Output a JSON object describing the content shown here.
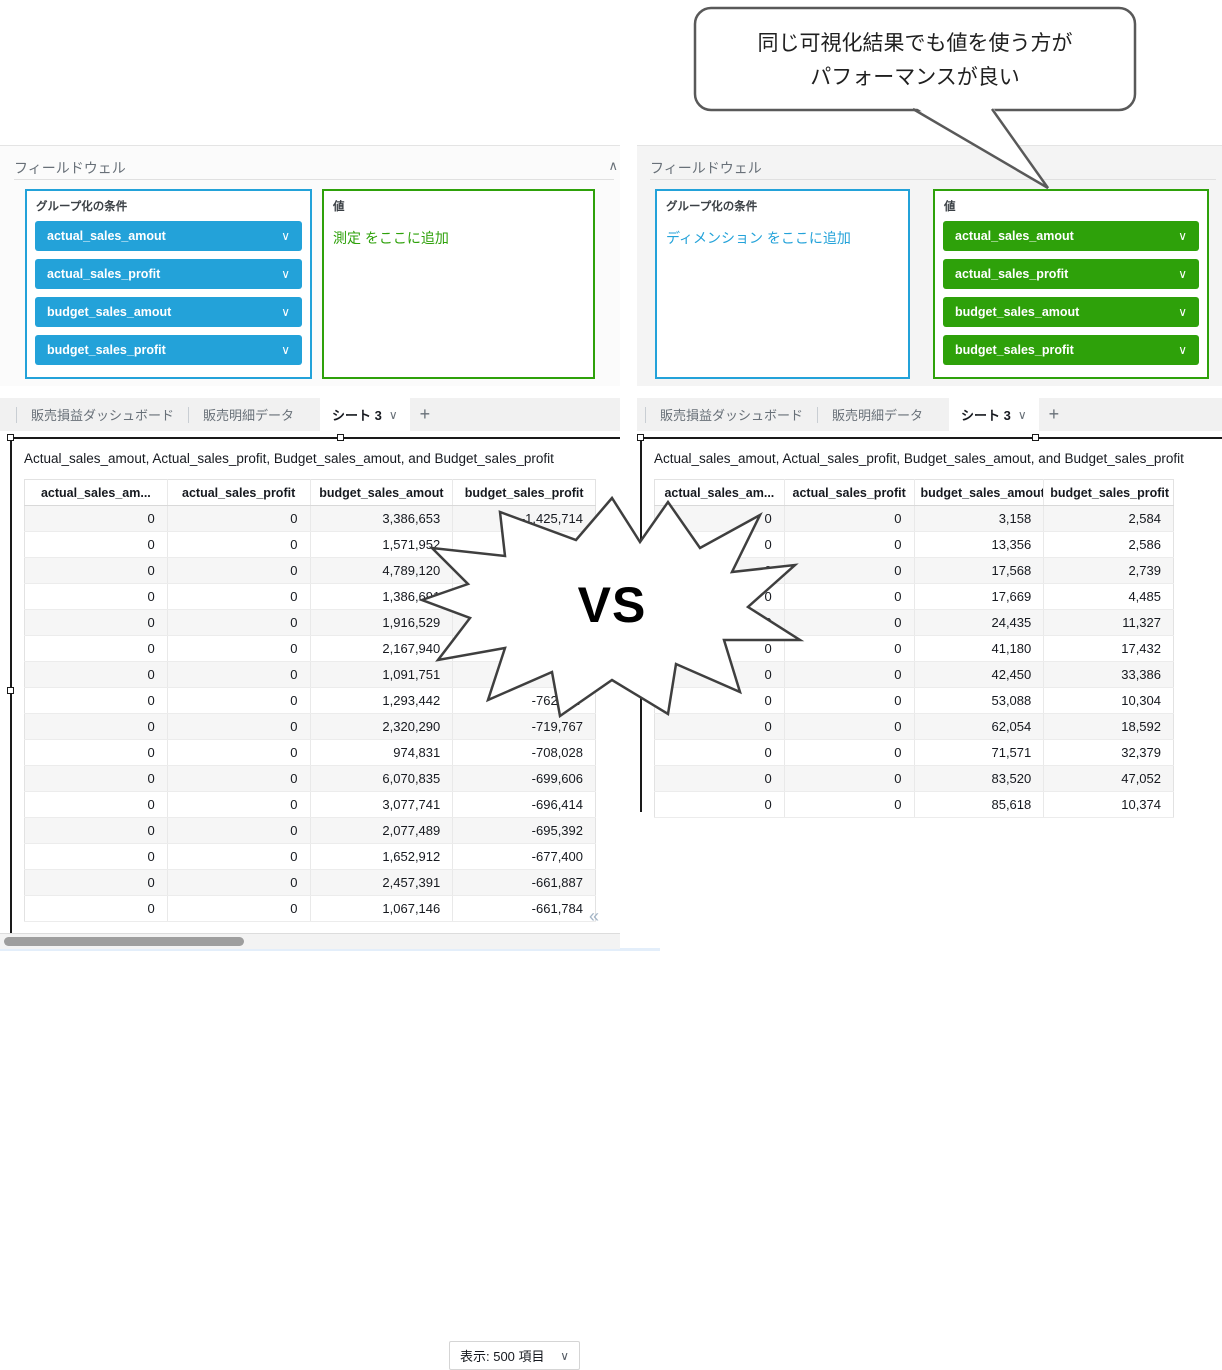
{
  "callout": {
    "line1": "同じ可視化結果でも値を使う方が",
    "line2": "パフォーマンスが良い"
  },
  "vs_label": "VS",
  "icons": {
    "chevron_down": "∨",
    "collapse": "∧",
    "add_tab": "+",
    "pagination_first": "«"
  },
  "colors": {
    "dimension_blue": "#23a2d9",
    "measure_green": "#2ea10a",
    "selection_border": "#1a1a1a"
  },
  "left_pane": {
    "field_well": {
      "title": "フィールドウェル",
      "group_box": {
        "label": "グループ化の条件"
      },
      "group_pills": [
        "actual_sales_amout",
        "actual_sales_profit",
        "budget_sales_amout",
        "budget_sales_profit"
      ],
      "value_box": {
        "label": "値",
        "placeholder": "測定 をここに追加"
      }
    },
    "tabs": {
      "tab1": "販売損益ダッシュボード",
      "tab2": "販売明細データ",
      "active_tab": "シート 3"
    },
    "visual": {
      "title": "Actual_sales_amout, Actual_sales_profit, Budget_sales_amout, and Budget_sales_profit",
      "columns": [
        "actual_sales_am...",
        "actual_sales_profit",
        "budget_sales_amout",
        "budget_sales_profit"
      ],
      "rows": [
        [
          "0",
          "0",
          "3,386,653",
          "-1,425,714"
        ],
        [
          "0",
          "0",
          "1,571,952",
          "-1,37"
        ],
        [
          "0",
          "0",
          "4,789,120",
          ""
        ],
        [
          "0",
          "0",
          "1,386,691",
          ""
        ],
        [
          "0",
          "0",
          "1,916,529",
          ""
        ],
        [
          "0",
          "0",
          "2,167,940",
          "-93"
        ],
        [
          "0",
          "0",
          "1,091,751",
          "-7"
        ],
        [
          "0",
          "0",
          "1,293,442",
          "-762,587"
        ],
        [
          "0",
          "0",
          "2,320,290",
          "-719,767"
        ],
        [
          "0",
          "0",
          "974,831",
          "-708,028"
        ],
        [
          "0",
          "0",
          "6,070,835",
          "-699,606"
        ],
        [
          "0",
          "0",
          "3,077,741",
          "-696,414"
        ],
        [
          "0",
          "0",
          "2,077,489",
          "-695,392"
        ],
        [
          "0",
          "0",
          "1,652,912",
          "-677,400"
        ],
        [
          "0",
          "0",
          "2,457,391",
          "-661,887"
        ],
        [
          "0",
          "0",
          "1,067,146",
          "-661,784"
        ]
      ],
      "footer": {
        "page_size_label": "表示: 500 項目"
      }
    }
  },
  "right_pane": {
    "field_well": {
      "title": "フィールドウェル",
      "group_box": {
        "label": "グループ化の条件",
        "placeholder": "ディメンション をここに追加"
      },
      "value_box": {
        "label": "値"
      },
      "value_pills": [
        "actual_sales_amout",
        "actual_sales_profit",
        "budget_sales_amout",
        "budget_sales_profit"
      ]
    },
    "tabs": {
      "tab1": "販売損益ダッシュボード",
      "tab2": "販売明細データ",
      "active_tab": "シート 3"
    },
    "visual": {
      "title": "Actual_sales_amout, Actual_sales_profit, Budget_sales_amout, and Budget_sales_profit",
      "columns": [
        "actual_sales_am...",
        "actual_sales_profit",
        "budget_sales_amout",
        "budget_sales_profit"
      ],
      "rows": [
        [
          "0",
          "0",
          "3,158",
          "2,584"
        ],
        [
          "0",
          "0",
          "13,356",
          "2,586"
        ],
        [
          "0",
          "0",
          "17,568",
          "2,739"
        ],
        [
          "0",
          "0",
          "17,669",
          "4,485"
        ],
        [
          "0",
          "0",
          "24,435",
          "11,327"
        ],
        [
          "0",
          "0",
          "41,180",
          "17,432"
        ],
        [
          "0",
          "0",
          "42,450",
          "33,386"
        ],
        [
          "0",
          "0",
          "53,088",
          "10,304"
        ],
        [
          "0",
          "0",
          "62,054",
          "18,592"
        ],
        [
          "0",
          "0",
          "71,571",
          "32,379"
        ],
        [
          "0",
          "0",
          "83,520",
          "47,052"
        ],
        [
          "0",
          "0",
          "85,618",
          "10,374"
        ]
      ]
    }
  }
}
